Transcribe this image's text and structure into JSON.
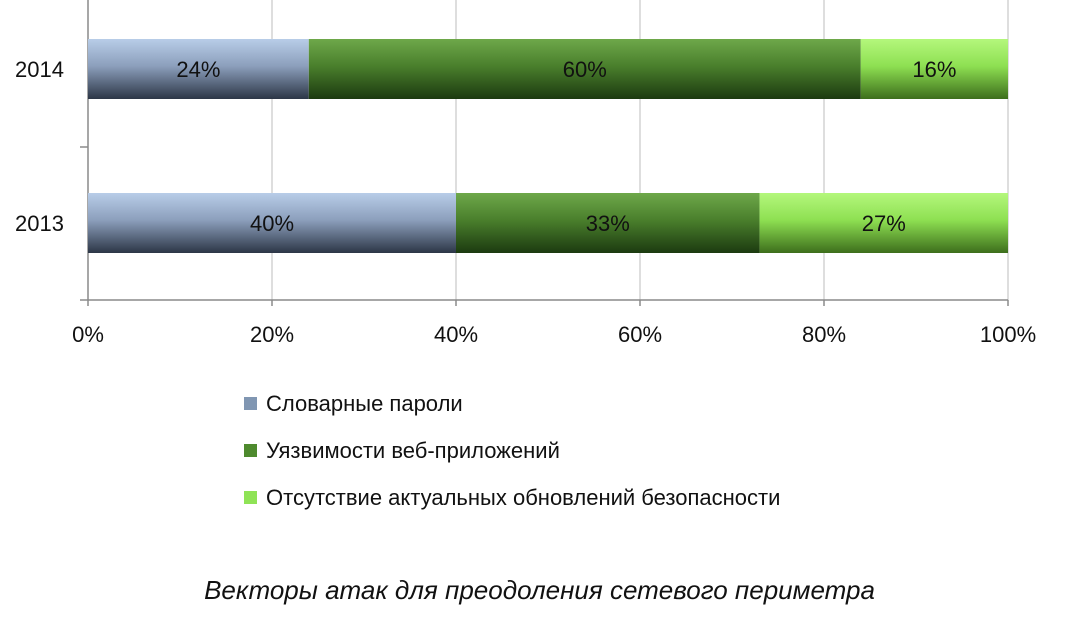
{
  "chart_data": {
    "type": "bar",
    "orientation": "horizontal",
    "stacked": true,
    "percent": true,
    "categories": [
      "2014",
      "2013"
    ],
    "series": [
      {
        "name": "Словарные пароли",
        "values": [
          24,
          40
        ],
        "labels": [
          "24%",
          "40%"
        ],
        "color": "#8096b2"
      },
      {
        "name": "Уязвимости веб-приложений",
        "values": [
          60,
          33
        ],
        "labels": [
          "60%",
          "33%"
        ],
        "color": "#4e8a2e"
      },
      {
        "name": "Отсутствие актуальных обновлений безопасности",
        "values": [
          16,
          27
        ],
        "labels": [
          "16%",
          "27%"
        ],
        "color": "#8fe356"
      }
    ],
    "xlim": [
      0,
      100
    ],
    "xticks": [
      "0%",
      "20%",
      "40%",
      "60%",
      "80%",
      "100%"
    ],
    "grid": "vertical",
    "legend_position": "bottom",
    "title": "Векторы атак для преодоления сетевого периметра"
  }
}
